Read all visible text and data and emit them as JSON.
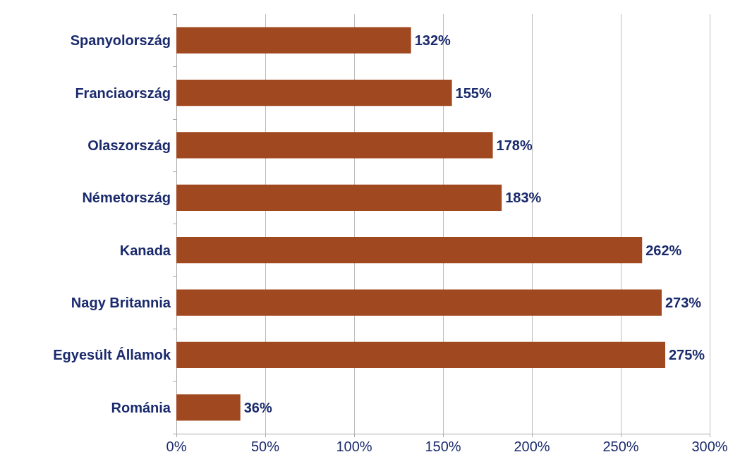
{
  "chart_data": {
    "type": "bar",
    "orientation": "horizontal",
    "categories": [
      "Spanyolország",
      "Franciaország",
      "Olaszország",
      "Németország",
      "Kanada",
      "Nagy Britannia",
      "Egyesült Államok",
      "Románia"
    ],
    "values": [
      132,
      155,
      178,
      183,
      262,
      273,
      275,
      36
    ],
    "value_labels": [
      "132%",
      "155%",
      "178%",
      "183%",
      "262%",
      "273%",
      "275%",
      "36%"
    ],
    "color": "#a0481f",
    "xlim": [
      0,
      300
    ],
    "xticks": [
      {
        "value": 0,
        "label": "0%"
      },
      {
        "value": 50,
        "label": "50%"
      },
      {
        "value": 100,
        "label": "100%"
      },
      {
        "value": 150,
        "label": "150%"
      },
      {
        "value": 200,
        "label": "200%"
      },
      {
        "value": 250,
        "label": "250%"
      },
      {
        "value": 300,
        "label": "300%"
      }
    ],
    "grid": "x"
  }
}
